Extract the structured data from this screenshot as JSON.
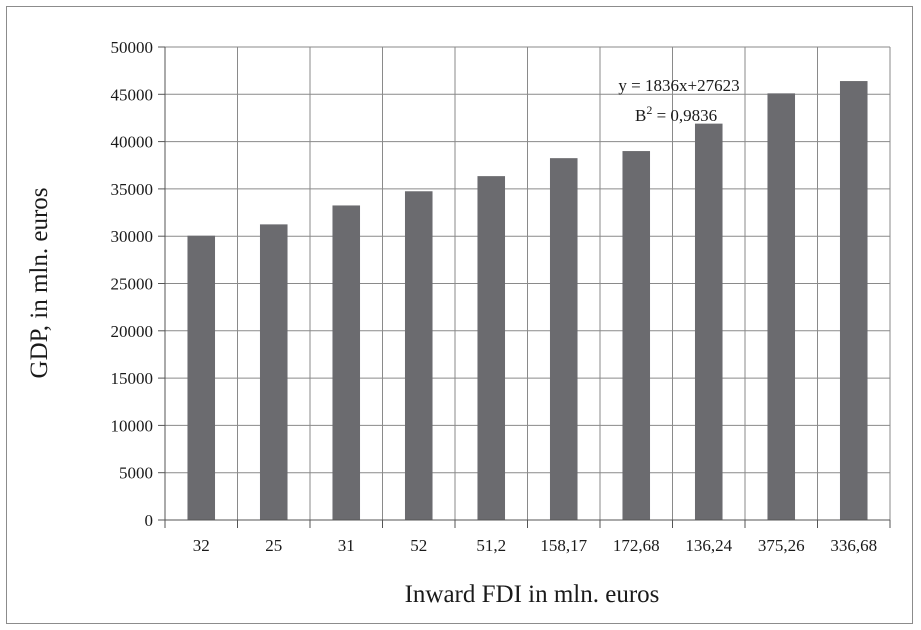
{
  "chart_data": {
    "type": "bar",
    "categories": [
      "32",
      "25",
      "31",
      "52",
      "51,2",
      "158,17",
      "172,68",
      "136,24",
      "375,26",
      "336,68"
    ],
    "values": [
      30050,
      31250,
      33250,
      34750,
      36350,
      38250,
      39000,
      41900,
      45100,
      46400
    ],
    "title": "",
    "xlabel": "Inward FDI in mln. euros",
    "ylabel": "GDP, in mln. euros",
    "ylim": [
      0,
      50000
    ],
    "yticks": [
      "0",
      "5000",
      "10000",
      "15000",
      "20000",
      "25000",
      "30000",
      "35000",
      "40000",
      "45000",
      "50000"
    ],
    "grid": true,
    "bar_color": "#6b6b6f",
    "annotation": {
      "equation": "y = 1836x+27623",
      "r2_label": "B",
      "r2_exp": "2",
      "r2_value": " = 0,9836"
    }
  }
}
